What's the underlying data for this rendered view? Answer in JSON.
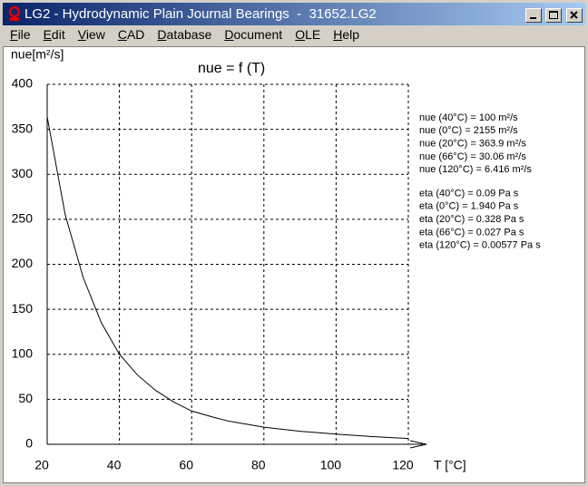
{
  "window": {
    "title": "LG2 - Hydrodynamic Plain Journal Bearings  -  31652.LG2"
  },
  "menu": [
    "File",
    "Edit",
    "View",
    "CAD",
    "Database",
    "Document",
    "OLE",
    "Help"
  ],
  "chart_data": {
    "type": "line",
    "title": "nue = f (T)",
    "y_label": "nue[m²/s]",
    "x_label": "T [°C]",
    "x": [
      20,
      25,
      30,
      35,
      40,
      45,
      50,
      55,
      60,
      66,
      70,
      80,
      90,
      100,
      110,
      120
    ],
    "values": [
      363.9,
      255,
      185,
      135,
      100,
      77,
      60,
      47,
      37,
      30.06,
      26,
      19,
      14.5,
      11.3,
      8.6,
      6.416
    ],
    "color": "#000000",
    "xlim": [
      20,
      120
    ],
    "ylim": [
      0,
      400
    ],
    "xticks": [
      20,
      40,
      60,
      80,
      100,
      120
    ],
    "yticks": [
      0,
      50,
      100,
      150,
      200,
      250,
      300,
      350,
      400
    ],
    "grid": true,
    "annotations": [
      [
        "nue (40°C) = 100 m²/s",
        "nue (0°C) = 2155 m²/s",
        "nue (20°C) = 363.9 m²/s",
        "nue (66°C) = 30.06 m²/s",
        "nue (120°C) = 6.416 m²/s"
      ],
      [
        "eta (40°C) = 0.09 Pa s",
        "eta (0°C) = 1.940 Pa s",
        "eta (20°C) = 0.328 Pa s",
        "eta (66°C) = 0.027 Pa s",
        "eta (120°C) = 0.00577 Pa s"
      ]
    ]
  }
}
